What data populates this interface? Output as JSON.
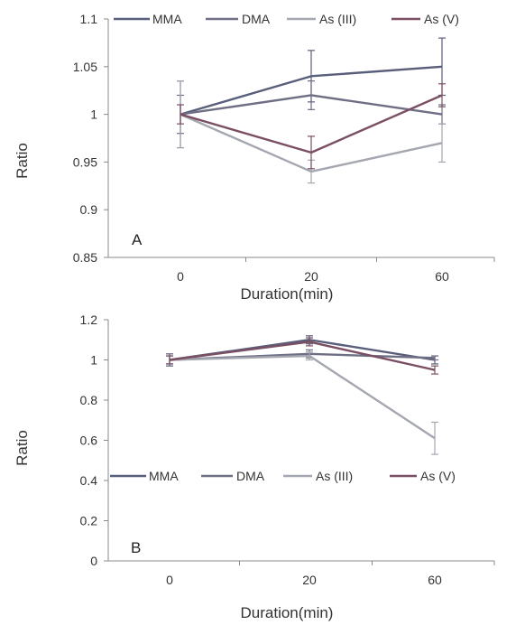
{
  "chart_data": [
    {
      "type": "line",
      "panel_label": "A",
      "title": "",
      "xlabel": "Duration(min)",
      "ylabel": "Ratio",
      "categories": [
        "0",
        "20",
        "60"
      ],
      "ylim": [
        0.85,
        1.1
      ],
      "yticks": [
        "0.85",
        "0.9",
        "0.95",
        "1",
        "1.05",
        "1.1"
      ],
      "grid": false,
      "legend_position": "top",
      "series": [
        {
          "name": "MMA",
          "color": "#595e7a",
          "values": [
            1.0,
            1.04,
            1.05
          ],
          "errors": [
            0.035,
            0.027,
            0.03
          ]
        },
        {
          "name": "DMA",
          "color": "#6e6e84",
          "values": [
            1.0,
            1.02,
            1.0
          ],
          "errors": [
            0.02,
            0.015,
            0.01
          ]
        },
        {
          "name": "As (III)",
          "color": "#a5a7b0",
          "values": [
            1.0,
            0.94,
            0.97
          ],
          "errors": [
            0.035,
            0.012,
            0.02
          ]
        },
        {
          "name": "As (V)",
          "color": "#7b4f63",
          "values": [
            1.0,
            0.96,
            1.02
          ],
          "errors": [
            0.01,
            0.017,
            0.012
          ]
        }
      ]
    },
    {
      "type": "line",
      "panel_label": "B",
      "title": "",
      "xlabel": "Duration(min)",
      "ylabel": "Ratio",
      "categories": [
        "0",
        "20",
        "60"
      ],
      "ylim": [
        0,
        1.2
      ],
      "yticks": [
        "0",
        "0.2",
        "0.4",
        "0.6",
        "0.8",
        "1",
        "1.2"
      ],
      "grid": false,
      "legend_position": "middle",
      "series": [
        {
          "name": "MMA",
          "color": "#595e7a",
          "values": [
            1.0,
            1.1,
            1.0
          ],
          "errors": [
            0.03,
            0.02,
            0.02
          ]
        },
        {
          "name": "DMA",
          "color": "#6e6e84",
          "values": [
            1.0,
            1.03,
            1.01
          ],
          "errors": [
            0.02,
            0.02,
            0.01
          ]
        },
        {
          "name": "As (III)",
          "color": "#a5a7b0",
          "values": [
            1.0,
            1.02,
            0.61
          ],
          "errors": [
            0.02,
            0.02,
            0.08
          ]
        },
        {
          "name": "As (V)",
          "color": "#7b4f63",
          "values": [
            1.0,
            1.09,
            0.95
          ],
          "errors": [
            0.02,
            0.02,
            0.02
          ]
        }
      ]
    }
  ]
}
